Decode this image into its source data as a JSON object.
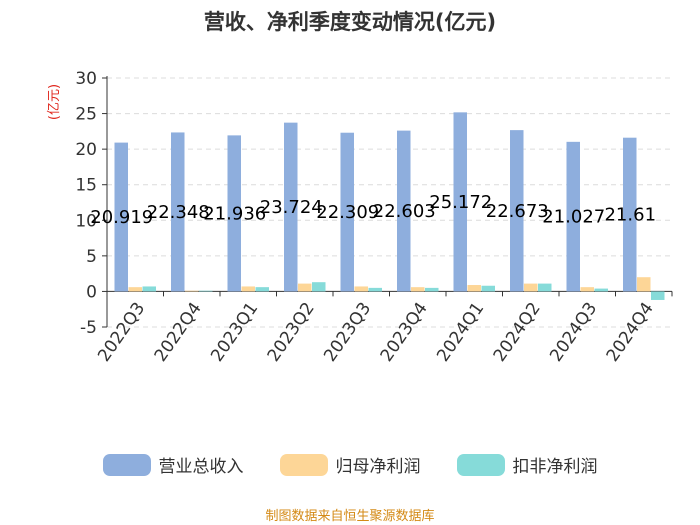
{
  "chart_data": {
    "type": "bar",
    "title": "营收、净利季度变动情况(亿元)",
    "ylabel": "(亿元)",
    "categories": [
      "2022Q3",
      "2022Q4",
      "2023Q1",
      "2023Q2",
      "2023Q3",
      "2023Q4",
      "2024Q1",
      "2024Q2",
      "2024Q3",
      "2024Q4"
    ],
    "ylim": [
      -5,
      30
    ],
    "yticks": [
      -5,
      0,
      5,
      10,
      15,
      20,
      25,
      30
    ],
    "grid": true,
    "legend_position": "bottom",
    "series": [
      {
        "name": "营业总收入",
        "color": "#8eaedd",
        "values": [
          20.919,
          22.348,
          21.936,
          23.724,
          22.309,
          22.603,
          25.172,
          22.673,
          21.027,
          21.61
        ],
        "labels": [
          "20.919",
          "22.348",
          "21.936",
          "23.724",
          "22.309",
          "22.603",
          "25.172",
          "22.673",
          "21.027",
          "21.61"
        ]
      },
      {
        "name": "归母净利润",
        "color": "#fdd697",
        "values": [
          0.6,
          0.1,
          0.7,
          1.1,
          0.7,
          0.6,
          0.9,
          1.1,
          0.6,
          2.0
        ]
      },
      {
        "name": "扣非净利润",
        "color": "#86dbd9",
        "values": [
          0.7,
          0.1,
          0.6,
          1.3,
          0.5,
          0.5,
          0.8,
          1.1,
          0.4,
          -1.2
        ]
      }
    ]
  },
  "source_note": "制图数据来自恒生聚源数据库"
}
